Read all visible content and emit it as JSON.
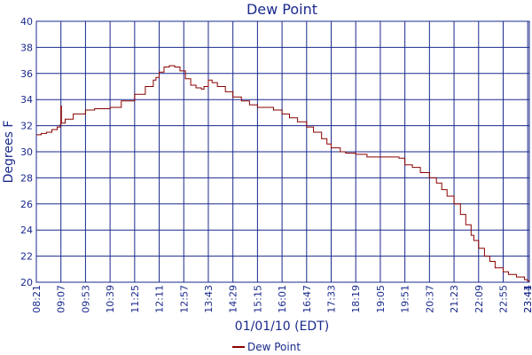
{
  "chart_data": {
    "type": "line",
    "title": "Dew Point",
    "xlabel": "01/01/10 (EDT)",
    "ylabel": "Degrees F",
    "ylim": [
      20,
      40
    ],
    "yticks": [
      "20",
      "22",
      "24",
      "26",
      "28",
      "30",
      "32",
      "34",
      "36",
      "38",
      "40"
    ],
    "xticks": [
      "08:21",
      "09:07",
      "09:53",
      "10:39",
      "11:25",
      "12:11",
      "12:57",
      "13:43",
      "14:29",
      "15:15",
      "16:01",
      "16:47",
      "17:33",
      "18:19",
      "19:05",
      "19:51",
      "20:37",
      "21:23",
      "22:09",
      "22:55",
      "23:41",
      "23:44"
    ],
    "grid": true,
    "legend_position": "bottom",
    "colors": {
      "line": "#8b0000",
      "axis": "#1a2a8c",
      "grid": "#1a2a8c",
      "text": "#1a2a8c"
    },
    "series": [
      {
        "name": "Dew Point",
        "x": [
          "08:21",
          "08:30",
          "08:40",
          "08:50",
          "09:00",
          "09:06",
          "09:07",
          "09:08",
          "09:15",
          "09:30",
          "09:53",
          "10:10",
          "10:39",
          "11:00",
          "11:25",
          "11:45",
          "12:00",
          "12:05",
          "12:11",
          "12:20",
          "12:30",
          "12:40",
          "12:50",
          "13:00",
          "13:10",
          "13:20",
          "13:30",
          "13:35",
          "13:43",
          "13:50",
          "14:00",
          "14:15",
          "14:29",
          "14:45",
          "15:00",
          "15:15",
          "15:30",
          "15:45",
          "16:01",
          "16:15",
          "16:30",
          "16:47",
          "17:00",
          "17:15",
          "17:25",
          "17:33",
          "17:50",
          "18:00",
          "18:19",
          "18:40",
          "19:05",
          "19:20",
          "19:40",
          "19:51",
          "20:05",
          "20:20",
          "20:37",
          "20:50",
          "21:00",
          "21:10",
          "21:23",
          "21:35",
          "21:45",
          "21:55",
          "22:00",
          "22:09",
          "22:20",
          "22:30",
          "22:40",
          "22:55",
          "23:05",
          "23:20",
          "23:35",
          "23:41",
          "23:44"
        ],
        "y": [
          31.3,
          31.4,
          31.5,
          31.7,
          31.9,
          32.1,
          33.5,
          32.2,
          32.5,
          32.9,
          33.2,
          33.3,
          33.4,
          33.9,
          34.4,
          35.0,
          35.5,
          35.7,
          36.1,
          36.5,
          36.6,
          36.5,
          36.2,
          35.6,
          35.1,
          34.9,
          34.8,
          35.0,
          35.5,
          35.3,
          35.0,
          34.6,
          34.2,
          33.9,
          33.6,
          33.4,
          33.4,
          33.2,
          32.9,
          32.6,
          32.3,
          31.9,
          31.5,
          31.0,
          30.6,
          30.3,
          30.0,
          29.9,
          29.8,
          29.6,
          29.6,
          29.6,
          29.5,
          29.0,
          28.8,
          28.4,
          28.0,
          27.6,
          27.1,
          26.6,
          26.0,
          25.2,
          24.4,
          23.6,
          23.2,
          22.6,
          22.0,
          21.6,
          21.1,
          20.8,
          20.6,
          20.4,
          20.2,
          20.1,
          20.1
        ]
      }
    ]
  }
}
